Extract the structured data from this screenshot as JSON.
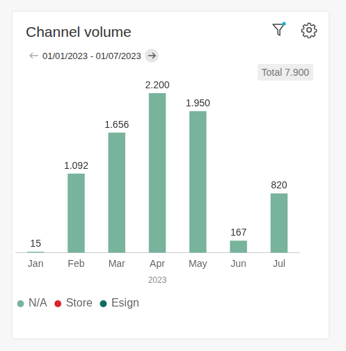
{
  "chart_data": {
    "type": "bar",
    "title": "Channel volume",
    "subtitle": "01/01/2023 - 01/07/2023",
    "annotations": [
      "Total 7.900"
    ],
    "xlabel": "2023",
    "categories": [
      "Jan",
      "Feb",
      "Mar",
      "Apr",
      "May",
      "Jun",
      "Jul"
    ],
    "series": [
      {
        "name": "N/A",
        "color": "#78b39c",
        "values": [
          15,
          1092,
          1656,
          2200,
          1950,
          167,
          820
        ],
        "value_labels": [
          "15",
          "1.092",
          "1.656",
          "2.200",
          "1.950",
          "167",
          "820"
        ]
      },
      {
        "name": "Store",
        "color": "#d7262d",
        "values": [
          null,
          null,
          null,
          null,
          null,
          null,
          null
        ]
      },
      {
        "name": "Esign",
        "color": "#0e6b62",
        "values": [
          null,
          null,
          null,
          null,
          null,
          null,
          null
        ]
      }
    ],
    "ylim": [
      0,
      2200
    ],
    "yticks": [
      0,
      2200
    ],
    "stacked": true,
    "data_labels": true,
    "grid": false,
    "legend": "bottom-left",
    "tick_labels": "x"
  }
}
